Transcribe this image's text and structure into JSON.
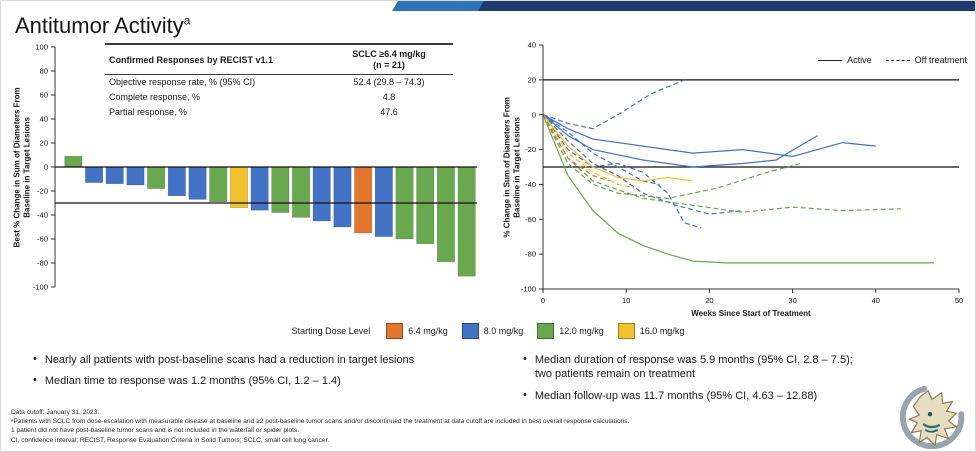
{
  "accent": {
    "ribbon_navy": "#1f3a6e",
    "ribbon_blue": "#2e74b5"
  },
  "title": {
    "text": "Antitumor Activity",
    "sup": "a"
  },
  "response_table": {
    "col1_header": "Confirmed Responses by RECIST v1.1",
    "col2_header_line1": "SCLC ≥6.4 mg/kg",
    "col2_header_line2": "(n = 21)",
    "rows": [
      {
        "label": "Objective response rate, % (95% CI)",
        "value": "52.4 (29.8 – 74.3)"
      },
      {
        "label": "Complete response, %",
        "value": "4.8"
      },
      {
        "label": "Partial response, %",
        "value": "47.6"
      }
    ]
  },
  "dose_legend": {
    "title": "Starting Dose Level",
    "items": [
      {
        "label": "6.4 mg/kg",
        "color": "#e1762c"
      },
      {
        "label": "8.0 mg/kg",
        "color": "#4472c4"
      },
      {
        "label": "12.0 mg/kg",
        "color": "#6aa84f"
      },
      {
        "label": "16.0 mg/kg",
        "color": "#f2c12e"
      }
    ]
  },
  "spider_legend": {
    "items": [
      {
        "label": "Active",
        "style": "solid"
      },
      {
        "label": "Off treatment",
        "style": "dashed"
      }
    ]
  },
  "bullets_left": [
    "Nearly all patients with post-baseline scans had a reduction in target lesions",
    "Median time to response was 1.2 months (95% CI, 1.2 – 1.4)"
  ],
  "bullets_right": [
    "Median duration of response was 5.9 months (95% CI, 2.8 – 7.5);\ntwo patients remain on treatment",
    "Median follow-up was 11.7 months (95% CI, 4.63 – 12.88)"
  ],
  "footnotes": [
    "Data cutoff: January 31, 2023.",
    "ᵃPatients with SCLC from dose-escalation with measurable disease at baseline and ≥2 post-baseline tumor scans and/or discontinued the treatment at data cutoff are included in best overall response calculations.",
    "1 patient did not have post-baseline tumor scans and is not included in the waterfall or spider plots.",
    "CI, confidence interval; RECIST, Response Evaluation Criteria in Solid Tumors; SCLC, small cell lung cancer."
  ],
  "chart_data": [
    {
      "type": "bar",
      "name": "waterfall",
      "ylabel": "Best % Change in Sum of Diameters From\nBaseline in Target Lesions",
      "ylim": [
        -100,
        100
      ],
      "yticks": [
        100,
        80,
        60,
        40,
        20,
        0,
        -20,
        -40,
        -60,
        -80,
        -100
      ],
      "reference_lines": [
        0,
        -30
      ],
      "grid": false,
      "bars": [
        {
          "value": 9,
          "dose": "12.0 mg/kg"
        },
        {
          "value": -13,
          "dose": "8.0 mg/kg"
        },
        {
          "value": -14,
          "dose": "8.0 mg/kg"
        },
        {
          "value": -15,
          "dose": "8.0 mg/kg"
        },
        {
          "value": -18,
          "dose": "12.0 mg/kg"
        },
        {
          "value": -24,
          "dose": "8.0 mg/kg"
        },
        {
          "value": -27,
          "dose": "8.0 mg/kg"
        },
        {
          "value": -29,
          "dose": "12.0 mg/kg"
        },
        {
          "value": -34,
          "dose": "16.0 mg/kg"
        },
        {
          "value": -36,
          "dose": "8.0 mg/kg"
        },
        {
          "value": -38,
          "dose": "12.0 mg/kg"
        },
        {
          "value": -42,
          "dose": "12.0 mg/kg"
        },
        {
          "value": -45,
          "dose": "8.0 mg/kg"
        },
        {
          "value": -50,
          "dose": "8.0 mg/kg"
        },
        {
          "value": -55,
          "dose": "6.4 mg/kg"
        },
        {
          "value": -58,
          "dose": "8.0 mg/kg"
        },
        {
          "value": -60,
          "dose": "12.0 mg/kg"
        },
        {
          "value": -64,
          "dose": "12.0 mg/kg"
        },
        {
          "value": -79,
          "dose": "12.0 mg/kg"
        },
        {
          "value": -91,
          "dose": "12.0 mg/kg"
        }
      ]
    },
    {
      "type": "line",
      "name": "spider",
      "xlabel": "Weeks Since Start of Treatment",
      "ylabel": "% Change in Sum of Diameters From\nBaseline in Target Lesions",
      "xlim": [
        0,
        50
      ],
      "ylim": [
        -100,
        40
      ],
      "xticks": [
        0,
        10,
        20,
        30,
        40,
        50
      ],
      "yticks": [
        40,
        20,
        0,
        -20,
        -40,
        -60,
        -80,
        -100
      ],
      "reference_lines": [
        20,
        -30
      ],
      "grid": false,
      "legend_position": "top-right",
      "series": [
        {
          "dose": "8.0 mg/kg",
          "status": "off",
          "points": [
            [
              0,
              0
            ],
            [
              3,
              -5
            ],
            [
              6,
              -8
            ],
            [
              9,
              0
            ],
            [
              13,
              12
            ],
            [
              17,
              20
            ]
          ]
        },
        {
          "dose": "8.0 mg/kg",
          "status": "active",
          "points": [
            [
              0,
              0
            ],
            [
              3,
              -8
            ],
            [
              6,
              -14
            ],
            [
              12,
              -18
            ],
            [
              18,
              -22
            ],
            [
              24,
              -20
            ],
            [
              30,
              -24
            ],
            [
              36,
              -16
            ],
            [
              40,
              -18
            ]
          ]
        },
        {
          "dose": "8.0 mg/kg",
          "status": "active",
          "points": [
            [
              0,
              0
            ],
            [
              3,
              -12
            ],
            [
              6,
              -20
            ],
            [
              12,
              -26
            ],
            [
              18,
              -30
            ],
            [
              24,
              -28
            ],
            [
              28,
              -26
            ],
            [
              33,
              -12
            ]
          ]
        },
        {
          "dose": "8.0 mg/kg",
          "status": "off",
          "points": [
            [
              0,
              0
            ],
            [
              3,
              -15
            ],
            [
              6,
              -28
            ],
            [
              9,
              -35
            ],
            [
              12,
              -45
            ],
            [
              16,
              -52
            ],
            [
              20,
              -57
            ],
            [
              24,
              -55
            ]
          ]
        },
        {
          "dose": "8.0 mg/kg",
          "status": "off",
          "points": [
            [
              0,
              0
            ],
            [
              3,
              -20
            ],
            [
              6,
              -30
            ],
            [
              9,
              -28
            ],
            [
              12,
              -33
            ],
            [
              15,
              -45
            ],
            [
              17,
              -62
            ],
            [
              19,
              -65
            ]
          ]
        },
        {
          "dose": "8.0 mg/kg",
          "status": "off",
          "points": [
            [
              0,
              0
            ],
            [
              3,
              -10
            ],
            [
              6,
              -22
            ],
            [
              9,
              -30
            ],
            [
              12,
              -38
            ],
            [
              14,
              -40
            ]
          ]
        },
        {
          "dose": "12.0 mg/kg",
          "status": "active",
          "points": [
            [
              0,
              0
            ],
            [
              3,
              -35
            ],
            [
              6,
              -55
            ],
            [
              9,
              -68
            ],
            [
              12,
              -75
            ],
            [
              15,
              -80
            ],
            [
              18,
              -84
            ],
            [
              22,
              -85
            ],
            [
              47,
              -85
            ]
          ]
        },
        {
          "dose": "12.0 mg/kg",
          "status": "off",
          "points": [
            [
              0,
              0
            ],
            [
              3,
              -25
            ],
            [
              6,
              -38
            ],
            [
              12,
              -48
            ],
            [
              18,
              -52
            ],
            [
              24,
              -56
            ],
            [
              30,
              -53
            ],
            [
              36,
              -55
            ],
            [
              43,
              -54
            ]
          ]
        },
        {
          "dose": "12.0 mg/kg",
          "status": "off",
          "points": [
            [
              0,
              0
            ],
            [
              3,
              -28
            ],
            [
              6,
              -40
            ],
            [
              9,
              -45
            ],
            [
              15,
              -48
            ],
            [
              21,
              -42
            ],
            [
              27,
              -33
            ],
            [
              31,
              -28
            ]
          ]
        },
        {
          "dose": "16.0 mg/kg",
          "status": "active",
          "points": [
            [
              0,
              0
            ],
            [
              3,
              -18
            ],
            [
              6,
              -30
            ],
            [
              9,
              -36
            ],
            [
              12,
              -38
            ],
            [
              15,
              -36
            ],
            [
              18,
              -38
            ]
          ]
        },
        {
          "dose": "16.0 mg/kg",
          "status": "off",
          "points": [
            [
              0,
              0
            ],
            [
              3,
              -22
            ],
            [
              6,
              -33
            ],
            [
              9,
              -40
            ],
            [
              11,
              -42
            ]
          ]
        },
        {
          "dose": "6.4 mg/kg",
          "status": "off",
          "points": [
            [
              0,
              0
            ],
            [
              3,
              -25
            ],
            [
              6,
              -35
            ],
            [
              8,
              -38
            ]
          ]
        }
      ]
    }
  ]
}
